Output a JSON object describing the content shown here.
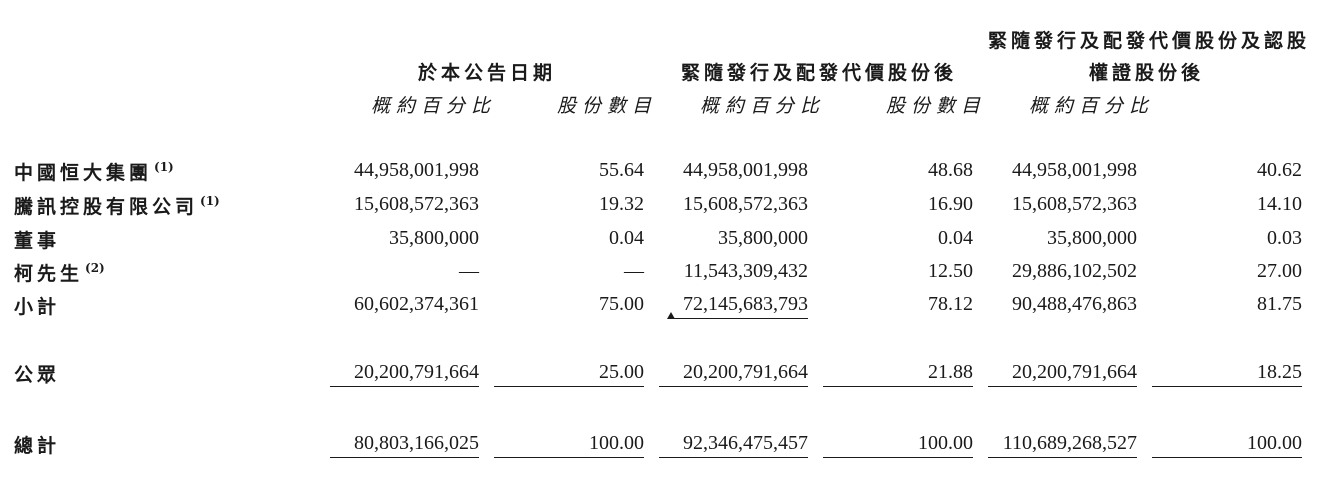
{
  "headers": {
    "col_group_1": "於本公告日期",
    "col_group_2": "緊隨發行及配發代價股份後",
    "col_group_3_line1": "緊隨發行及配發代價股份及認股",
    "col_group_3_line2": "權證股份後",
    "sub_shares": "概約百分比",
    "sub_percent": "股份數目"
  },
  "rows": [
    {
      "label": "中國恒大集團",
      "note": "(1)",
      "values": [
        "44,958,001,998",
        "55.64",
        "44,958,001,998",
        "48.68",
        "44,958,001,998",
        "40.62"
      ]
    },
    {
      "label": "騰訊控股有限公司",
      "note": "(1)",
      "values": [
        "15,608,572,363",
        "19.32",
        "15,608,572,363",
        "16.90",
        "15,608,572,363",
        "14.10"
      ]
    },
    {
      "label": "董事",
      "note": "",
      "values": [
        "35,800,000",
        "0.04",
        "35,800,000",
        "0.04",
        "35,800,000",
        "0.03"
      ]
    },
    {
      "label": "柯先生",
      "note": "(2)",
      "values": [
        "—",
        "—",
        "11,543,309,432",
        "12.50",
        "29,886,102,502",
        "27.00"
      ]
    },
    {
      "label": "小計",
      "note": "",
      "values": [
        "60,602,374,361",
        "75.00",
        "72,145,683,793",
        "78.12",
        "90,488,476,863",
        "81.75"
      ]
    },
    {
      "label": "公眾",
      "note": "",
      "values": [
        "20,200,791,664",
        "25.00",
        "20,200,791,664",
        "21.88",
        "20,200,791,664",
        "18.25"
      ]
    },
    {
      "label": "總計",
      "note": "",
      "values": [
        "80,803,166,025",
        "100.00",
        "92,346,475,457",
        "100.00",
        "110,689,268,527",
        "100.00"
      ]
    }
  ]
}
